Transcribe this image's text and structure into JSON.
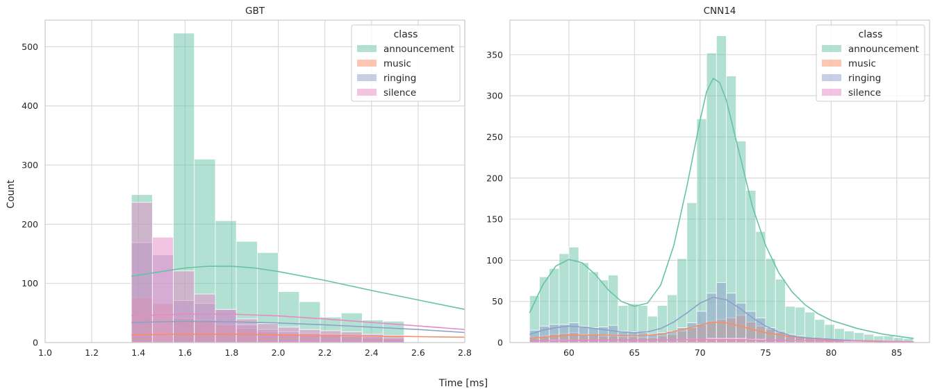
{
  "figure": {
    "xlabel": "Time [ms]",
    "ylabel": "Count"
  },
  "colors": {
    "announcement": "#66c2a5",
    "music": "#fc8d62",
    "ringing": "#8da0cb",
    "silence": "#e78ac3",
    "grid": "#d9d9d9",
    "frame": "#cccccc"
  },
  "chart_data": [
    {
      "type": "histogram",
      "title": "GBT",
      "xlim": [
        1.0,
        2.8
      ],
      "ylim": [
        0,
        545
      ],
      "xticks": [
        1.0,
        1.2,
        1.4,
        1.6,
        1.8,
        2.0,
        2.2,
        2.4,
        2.6,
        2.8
      ],
      "yticks": [
        0,
        100,
        200,
        300,
        400,
        500
      ],
      "bin_edges": [
        1.37,
        1.46,
        1.55,
        1.64,
        1.73,
        1.82,
        1.91,
        2.0,
        2.09,
        2.18,
        2.27,
        2.36,
        2.45,
        2.54,
        2.63,
        2.72,
        2.81
      ],
      "legend": {
        "title": "class",
        "loc": "upper right",
        "entries": [
          "announcement",
          "music",
          "ringing",
          "silence"
        ]
      },
      "series": [
        {
          "name": "announcement",
          "counts": [
            250,
            0,
            523,
            310,
            206,
            171,
            152,
            86,
            69,
            43,
            50,
            38,
            36,
            0,
            0,
            0
          ],
          "kde": {
            "x": [
              1.37,
              1.5,
              1.6,
              1.7,
              1.8,
              1.9,
              2.0,
              2.2,
              2.4,
              2.6,
              2.8
            ],
            "y": [
              112,
              120,
              126,
              129,
              129,
              126,
              120,
              105,
              88,
              72,
              56
            ]
          }
        },
        {
          "name": "music",
          "counts": [
            76,
            66,
            41,
            38,
            30,
            24,
            18,
            15,
            14,
            12,
            10,
            8,
            6,
            0,
            0,
            0
          ],
          "kde": {
            "x": [
              1.37,
              1.6,
              1.8,
              2.0,
              2.2,
              2.4,
              2.6,
              2.8
            ],
            "y": [
              13,
              14,
              14,
              13,
              12,
              11,
              10,
              9
            ]
          }
        },
        {
          "name": "ringing",
          "counts": [
            169,
            148,
            71,
            66,
            56,
            30,
            22,
            18,
            16,
            14,
            12,
            10,
            8,
            0,
            0,
            0
          ],
          "kde": {
            "x": [
              1.37,
              1.6,
              1.8,
              2.0,
              2.2,
              2.4,
              2.6,
              2.8
            ],
            "y": [
              34,
              36,
              35,
              33,
              30,
              26,
              22,
              17
            ]
          }
        },
        {
          "name": "silence",
          "counts": [
            237,
            178,
            121,
            82,
            56,
            40,
            32,
            26,
            22,
            20,
            18,
            14,
            12,
            0,
            0,
            0
          ],
          "kde": {
            "x": [
              1.37,
              1.6,
              1.8,
              2.0,
              2.2,
              2.4,
              2.6,
              2.8
            ],
            "y": [
              45,
              48,
              48,
              45,
              40,
              34,
              28,
              22
            ]
          }
        }
      ]
    },
    {
      "type": "histogram",
      "title": "CNN14",
      "xlim": [
        55.5,
        87.5
      ],
      "ylim": [
        0,
        392
      ],
      "xticks": [
        60,
        65,
        70,
        75,
        80,
        85
      ],
      "yticks": [
        0,
        50,
        100,
        150,
        200,
        250,
        300,
        350
      ],
      "bin_start": 57.0,
      "bin_width": 0.75,
      "legend": {
        "title": "class",
        "loc": "upper right",
        "entries": [
          "announcement",
          "music",
          "ringing",
          "silence"
        ]
      },
      "series": [
        {
          "name": "announcement",
          "counts": [
            57,
            80,
            90,
            108,
            116,
            97,
            86,
            76,
            82,
            45,
            47,
            45,
            32,
            45,
            58,
            102,
            170,
            272,
            352,
            373,
            324,
            245,
            185,
            135,
            102,
            77,
            44,
            43,
            37,
            28,
            22,
            17,
            14,
            12,
            10,
            8,
            8,
            6,
            5
          ],
          "kde": {
            "x": [
              57,
              58,
              59,
              60,
              61,
              62,
              63,
              64,
              65,
              66,
              67,
              68,
              69,
              70,
              70.5,
              71,
              71.5,
              72,
              73,
              74,
              75,
              76,
              77,
              78,
              79,
              80,
              82,
              84,
              86.3
            ],
            "y": [
              36,
              70,
              93,
              101,
              97,
              83,
              64,
              50,
              44,
              48,
              70,
              118,
              190,
              270,
              305,
              321,
              316,
              295,
              230,
              165,
              118,
              85,
              62,
              46,
              35,
              27,
              17,
              10,
              5
            ]
          }
        },
        {
          "name": "music",
          "counts": [
            5,
            8,
            10,
            11,
            12,
            10,
            9,
            8,
            8,
            7,
            7,
            6,
            6,
            8,
            10,
            14,
            18,
            22,
            26,
            28,
            30,
            33,
            25,
            20,
            16,
            12,
            9,
            7,
            6,
            5,
            4,
            3,
            3,
            2,
            2,
            2,
            2,
            1,
            1
          ],
          "kde": {
            "x": [
              57,
              60,
              63,
              65,
              67,
              69,
              71,
              72,
              73,
              75,
              77,
              80,
              83,
              86.3
            ],
            "y": [
              5,
              9,
              9,
              8,
              10,
              17,
              25,
              24,
              20,
              12,
              7,
              3,
              2,
              1
            ]
          }
        },
        {
          "name": "ringing",
          "counts": [
            15,
            20,
            22,
            22,
            24,
            20,
            18,
            19,
            21,
            14,
            13,
            12,
            10,
            12,
            14,
            18,
            24,
            38,
            60,
            73,
            60,
            48,
            38,
            30,
            18,
            14,
            10,
            8,
            6,
            5,
            4,
            3,
            3,
            2,
            2,
            2,
            2,
            1,
            1
          ],
          "kde": {
            "x": [
              57,
              58,
              59,
              60,
              61,
              62,
              63,
              64,
              65,
              66,
              67,
              68,
              69,
              70,
              71,
              72,
              73,
              74,
              75,
              76,
              77,
              78,
              80,
              82,
              84,
              86.3
            ],
            "y": [
              10,
              15,
              18,
              20,
              19,
              17,
              15,
              13,
              12,
              13,
              17,
              25,
              36,
              48,
              55,
              52,
              42,
              30,
              20,
              13,
              8,
              6,
              4,
              2,
              1,
              1
            ]
          }
        },
        {
          "name": "silence",
          "counts": [
            2,
            2,
            3,
            3,
            3,
            3,
            3,
            3,
            3,
            3,
            3,
            3,
            3,
            3,
            3,
            3,
            4,
            4,
            5,
            5,
            5,
            5,
            4,
            4,
            3,
            3,
            3,
            2,
            2,
            2,
            2,
            2,
            1,
            1,
            1,
            1,
            1,
            1,
            1
          ],
          "kde": {
            "x": [
              57,
              62,
              67,
              71,
              75,
              80,
              86.3
            ],
            "y": [
              2,
              3,
              3,
              4,
              3,
              2,
              1
            ]
          }
        }
      ]
    }
  ]
}
